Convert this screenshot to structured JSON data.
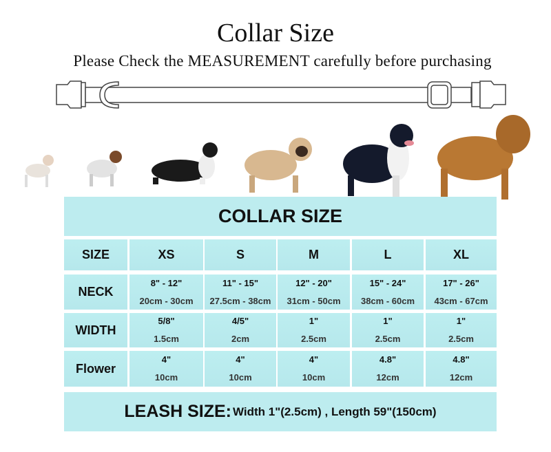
{
  "header": {
    "title": "Collar Size",
    "subtitle": "Please Check the MEASUREMENT carefully before purchasing"
  },
  "table": {
    "title": "COLLAR SIZE",
    "size_label": "SIZE",
    "sizes": [
      "XS",
      "S",
      "M",
      "L",
      "XL"
    ],
    "rows": [
      {
        "label": "NECK",
        "line1": [
          "8\" - 12\"",
          "11\" - 15\"",
          "12\" - 20\"",
          "15\" - 24\"",
          "17\" - 26\""
        ],
        "line2": [
          "20cm - 30cm",
          "27.5cm - 38cm",
          "31cm - 50cm",
          "38cm - 60cm",
          "43cm - 67cm"
        ]
      },
      {
        "label": "WIDTH",
        "line1": [
          "5/8\"",
          "4/5\"",
          "1\"",
          "1\"",
          "1\""
        ],
        "line2": [
          "1.5cm",
          "2cm",
          "2.5cm",
          "2.5cm",
          "2.5cm"
        ]
      },
      {
        "label": "Flower",
        "line1": [
          "4\"",
          "4\"",
          "4\"",
          "4.8\"",
          "4.8\""
        ],
        "line2": [
          "10cm",
          "10cm",
          "10cm",
          "12cm",
          "12cm"
        ]
      }
    ]
  },
  "leash": {
    "label": "LEASH SIZE:",
    "detail": "Width 1\"(2.5cm) , Length 59\"(150cm)"
  },
  "colors": {
    "cell": "#bdecef"
  }
}
